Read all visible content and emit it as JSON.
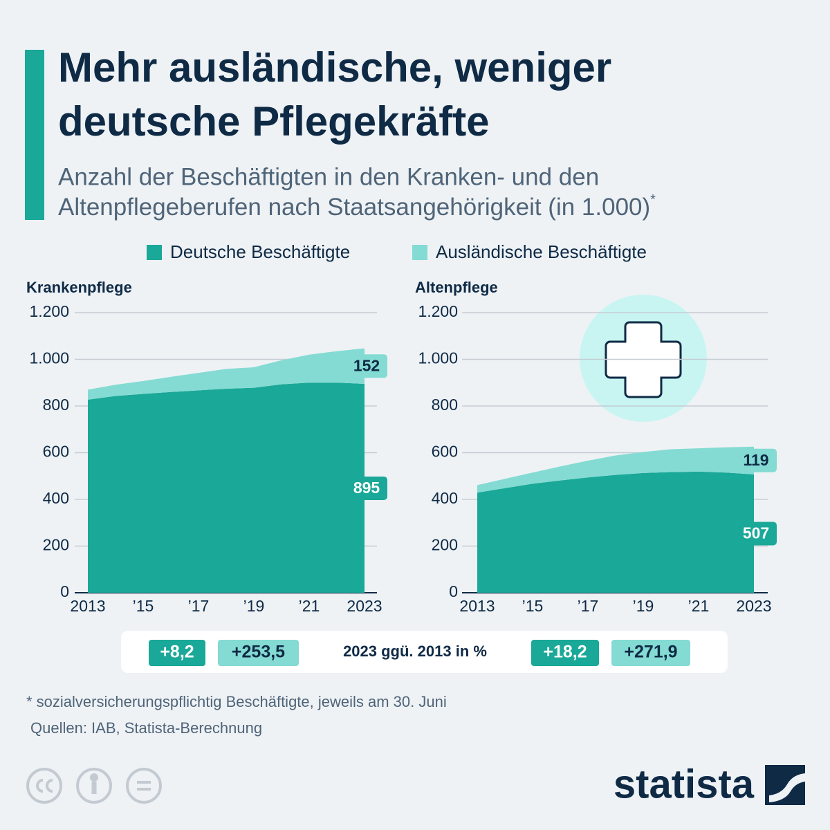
{
  "title": [
    "Mehr ausländische, weniger",
    "deutsche Pflegekräfte"
  ],
  "subtitle": [
    "Anzahl der Beschäftigten in den Kranken- und den",
    "Altenpflegeberufen nach Staatsangehörigkeit (in 1.000)"
  ],
  "subtitle_mark": "*",
  "comparison_label": "2023 ggü. 2013 in %",
  "footnote": "* sozialversicherungspflichtig Beschäftigte, jeweils am 30. Juni",
  "source": "Quellen: IAB, Statista-Berechnung",
  "brand": "statista",
  "chart_data": [
    {
      "type": "area",
      "title": "Krankenpflege",
      "stacked": true,
      "x": [
        2013,
        2014,
        2015,
        2016,
        2017,
        2018,
        2019,
        2020,
        2021,
        2022,
        2023
      ],
      "xlim": [
        2013,
        2023
      ],
      "xticks": [
        2013,
        {
          "value": 2015,
          "label": "’15"
        },
        {
          "value": 2017,
          "label": "’17"
        },
        {
          "value": 2019,
          "label": "’19"
        },
        {
          "value": 2021,
          "label": "’21"
        },
        2023
      ],
      "ylim": [
        0,
        1200
      ],
      "yticks": [
        0,
        200,
        400,
        600,
        800,
        {
          "value": 1000,
          "label": "1.000"
        },
        {
          "value": 1200,
          "label": "1.200"
        }
      ],
      "grid": true,
      "series": [
        {
          "name": "Deutsche Beschäftigte",
          "color": "#1aa898",
          "values": [
            827,
            843,
            852,
            860,
            867,
            874,
            878,
            893,
            900,
            900,
            895
          ],
          "change": {
            "value": 8.2,
            "label": "+8,2"
          }
        },
        {
          "name": "Ausländische Beschäftigte",
          "color": "#84dbd3",
          "values": [
            43,
            48,
            55,
            65,
            75,
            85,
            88,
            103,
            120,
            135,
            152
          ],
          "change": {
            "value": 253.5,
            "label": "+253,5"
          }
        }
      ]
    },
    {
      "type": "area",
      "title": "Altenpflege",
      "stacked": true,
      "x": [
        2013,
        2014,
        2015,
        2016,
        2017,
        2018,
        2019,
        2020,
        2021,
        2022,
        2023
      ],
      "xlim": [
        2013,
        2023
      ],
      "xticks": [
        2013,
        {
          "value": 2015,
          "label": "’15"
        },
        {
          "value": 2017,
          "label": "’17"
        },
        {
          "value": 2019,
          "label": "’19"
        },
        {
          "value": 2021,
          "label": "’21"
        },
        2023
      ],
      "ylim": [
        0,
        1200
      ],
      "yticks": [
        0,
        200,
        400,
        600,
        800,
        {
          "value": 1000,
          "label": "1.000"
        },
        {
          "value": 1200,
          "label": "1.200"
        }
      ],
      "grid": true,
      "series": [
        {
          "name": "Deutsche Beschäftigte",
          "color": "#1aa898",
          "values": [
            429,
            448,
            467,
            481,
            494,
            505,
            513,
            517,
            519,
            515,
            507
          ],
          "change": {
            "value": 18.2,
            "label": "+18,2"
          }
        },
        {
          "name": "Ausländische Beschäftigte",
          "color": "#84dbd3",
          "values": [
            32,
            40,
            48,
            60,
            72,
            83,
            90,
            98,
            100,
            108,
            119
          ],
          "change": {
            "value": 271.9,
            "label": "+271,9"
          }
        }
      ]
    }
  ]
}
